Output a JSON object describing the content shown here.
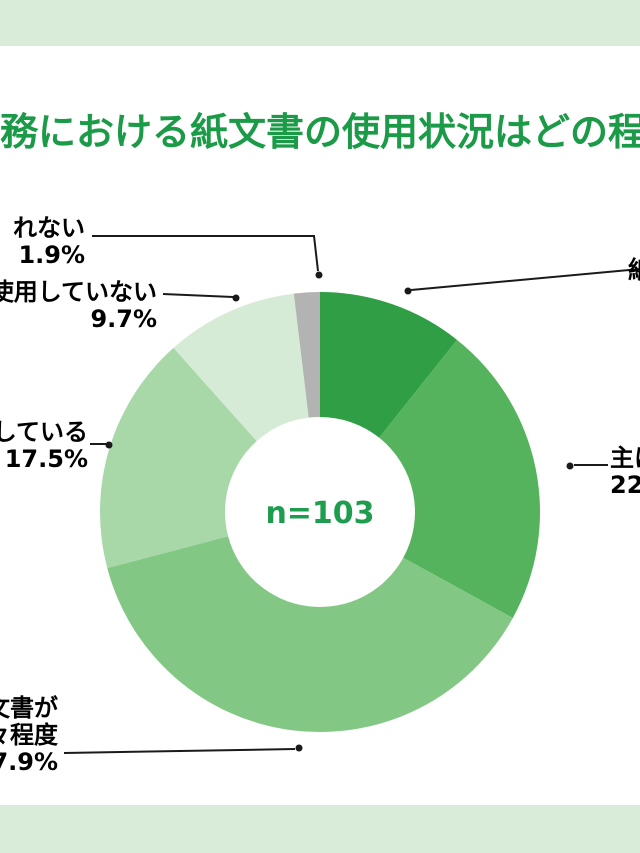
{
  "colors": {
    "background_band": "#d9ecd9",
    "panel": "#ffffff",
    "title": "#1b9a47",
    "center_text": "#1f9d4e",
    "label_text": "#000000",
    "leader_line": "#1a1a1a"
  },
  "title": {
    "text": "務における紙文書の使用状況はどの程"
  },
  "center_label": {
    "text": "n=103"
  },
  "chart_data": {
    "type": "pie",
    "donut": true,
    "center_text": "n=103",
    "legend_position": "callouts",
    "start_angle_deg": 0,
    "direction": "clockwise",
    "segments": [
      {
        "label": "紙",
        "value": 10.7,
        "display_value": "",
        "color": "#2f9e44"
      },
      {
        "label": "主に",
        "value": 22.3,
        "display_value": "22.",
        "color": "#55b35d"
      },
      {
        "label": "文書が 々程度",
        "value": 37.9,
        "display_value": "7.9%",
        "color": "#82c884"
      },
      {
        "label": "している",
        "value": 17.5,
        "display_value": "17.5%",
        "color": "#a8d7a8"
      },
      {
        "label": "使用していない",
        "value": 9.7,
        "display_value": "9.7%",
        "color": "#d6ebd6"
      },
      {
        "label": "れない",
        "value": 1.9,
        "display_value": "1.9%",
        "color": "#b3b3b3"
      }
    ]
  },
  "callouts": {
    "cannot_answer": {
      "lines": [
        "れない",
        "1.9%"
      ]
    },
    "rarely_use": {
      "lines": [
        "使用していない",
        "9.7%"
      ]
    },
    "mainly_digital": {
      "lines": [
        "している",
        "17.5%"
      ]
    },
    "half_half": {
      "lines": [
        "文書が",
        "々程度",
        "7.9%"
      ]
    },
    "mainly_paper": {
      "lines": [
        "主に",
        "22."
      ]
    },
    "only_paper": {
      "lines": [
        "紙"
      ]
    }
  }
}
